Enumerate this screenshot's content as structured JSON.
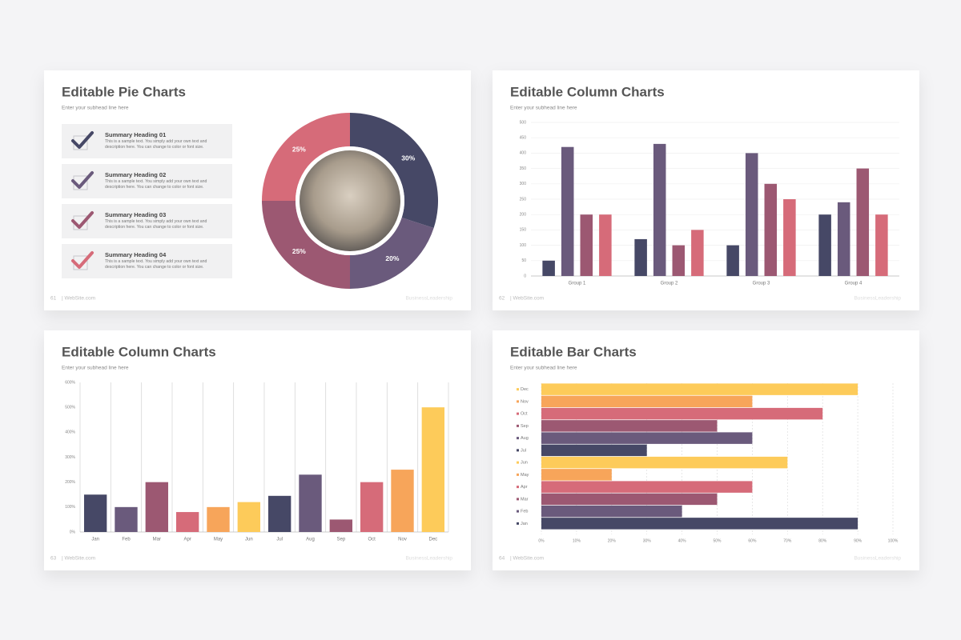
{
  "chart_data": [
    {
      "type": "pie",
      "title": "Editable Pie Charts",
      "subtitle": "Enter your subhead line here",
      "items": [
        {
          "heading": "Summary Heading 01",
          "text": "This is a sample text. You simply add your own text and description here. You can change to color or font size."
        },
        {
          "heading": "Summary Heading 02",
          "text": "This is a sample text. You simply add your own text and description here. You can change to color or font size."
        },
        {
          "heading": "Summary Heading 03",
          "text": "This is a sample text. You simply add your own text and description here. You can change to color or font size."
        },
        {
          "heading": "Summary Heading 04",
          "text": "This is a sample text. You simply add your own text and description here. You can change to color or font size."
        }
      ],
      "values": [
        30,
        20,
        25,
        25
      ],
      "value_labels": [
        "30%",
        "20%",
        "25%",
        "25%"
      ],
      "colors": [
        "#464866",
        "#6a5a7c",
        "#9c5872",
        "#d66b79"
      ],
      "page_number": "61",
      "footer": "| WebSite.com",
      "brand": "BusinessLeadership"
    },
    {
      "type": "bar",
      "title": "Editable Column Charts",
      "subtitle": "Enter your subhead line here",
      "categories": [
        "Group 1",
        "Group 2",
        "Group 3",
        "Group 4"
      ],
      "series": [
        {
          "color": "#464866",
          "values": [
            50,
            120,
            100,
            200
          ]
        },
        {
          "color": "#6a5a7c",
          "values": [
            420,
            430,
            400,
            240
          ]
        },
        {
          "color": "#9c5872",
          "values": [
            200,
            100,
            300,
            350
          ]
        },
        {
          "color": "#d66b79",
          "values": [
            200,
            150,
            250,
            200
          ]
        }
      ],
      "ylim": [
        0,
        500
      ],
      "yticks": [
        0,
        50,
        100,
        150,
        200,
        250,
        300,
        350,
        400,
        450,
        500
      ],
      "grid": "y",
      "page_number": "62",
      "footer": "| WebSite.com",
      "brand": "BusinessLeadership"
    },
    {
      "type": "bar",
      "title": "Editable Column Charts",
      "subtitle": "Enter your subhead line here",
      "categories": [
        "Jan",
        "Feb",
        "Mar",
        "Apr",
        "May",
        "Jun",
        "Jul",
        "Aug",
        "Sep",
        "Oct",
        "Nov",
        "Dec"
      ],
      "values": [
        150,
        100,
        200,
        80,
        100,
        120,
        145,
        230,
        50,
        200,
        250,
        500
      ],
      "colors": [
        "#464866",
        "#6a5a7c",
        "#9c5872",
        "#d66b79",
        "#f7a55a",
        "#fdcb5a",
        "#464866",
        "#6a5a7c",
        "#9c5872",
        "#d66b79",
        "#f7a55a",
        "#fdcb5a"
      ],
      "ylim": [
        0,
        600
      ],
      "yticks": [
        {
          "value": 0,
          "label": "0%"
        },
        {
          "value": 100,
          "label": "100%"
        },
        {
          "value": 200,
          "label": "200%"
        },
        {
          "value": 300,
          "label": "300%"
        },
        {
          "value": 400,
          "label": "400%"
        },
        {
          "value": 500,
          "label": "500%"
        },
        {
          "value": 600,
          "label": "600%"
        }
      ],
      "grid": "x",
      "page_number": "63",
      "footer": "| WebSite.com",
      "brand": "BusinessLeadership"
    },
    {
      "type": "barh",
      "title": "Editable Bar Charts",
      "subtitle": "Enter your subhead line here",
      "categories": [
        "Jan",
        "Feb",
        "Mar",
        "Apr",
        "May",
        "Jun",
        "Jul",
        "Aug",
        "Sep",
        "Oct",
        "Nov",
        "Dec"
      ],
      "values": [
        90,
        40,
        50,
        60,
        20,
        70,
        30,
        60,
        50,
        80,
        60,
        90
      ],
      "colors": [
        "#464866",
        "#6a5a7c",
        "#9c5872",
        "#d66b79",
        "#f7a55a",
        "#fdcb5a",
        "#464866",
        "#6a5a7c",
        "#9c5872",
        "#d66b79",
        "#f7a55a",
        "#fdcb5a"
      ],
      "xlim": [
        0,
        100
      ],
      "xticks": [
        {
          "value": 0,
          "label": "0%"
        },
        {
          "value": 10,
          "label": "10%"
        },
        {
          "value": 20,
          "label": "20%"
        },
        {
          "value": 30,
          "label": "30%"
        },
        {
          "value": 40,
          "label": "40%"
        },
        {
          "value": 50,
          "label": "50%"
        },
        {
          "value": 60,
          "label": "60%"
        },
        {
          "value": 70,
          "label": "70%"
        },
        {
          "value": 80,
          "label": "80%"
        },
        {
          "value": 90,
          "label": "90%"
        },
        {
          "value": 100,
          "label": "100%"
        }
      ],
      "grid": "x",
      "page_number": "64",
      "footer": "| WebSite.com",
      "brand": "BusinessLeadership"
    }
  ]
}
